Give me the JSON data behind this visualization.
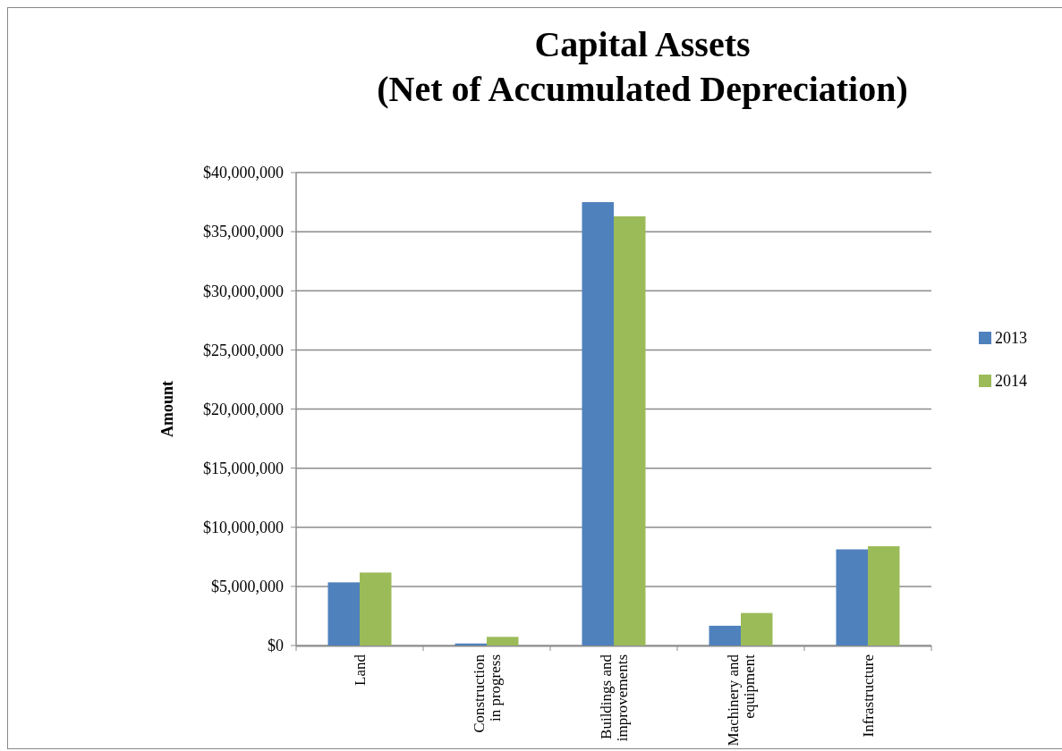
{
  "chart_data": {
    "type": "bar",
    "title": "Capital Assets\n(Net of  Accumulated Depreciation)",
    "ylabel": "Amount",
    "categories": [
      "Land",
      "Construction in progress",
      "Buildings and improvements",
      "Machinery and equipment",
      "Infrastructure"
    ],
    "series": [
      {
        "name": "2013",
        "color": "#4f81bd",
        "values": [
          5340000,
          170000,
          37500000,
          1670000,
          8130000
        ]
      },
      {
        "name": "2014",
        "color": "#9bbb59",
        "values": [
          6170000,
          730000,
          36300000,
          2750000,
          8400000
        ]
      }
    ],
    "ylim": [
      0,
      40000000
    ],
    "yticks": [
      {
        "value": 0,
        "label": "$0"
      },
      {
        "value": 5000000,
        "label": "$5,000,000"
      },
      {
        "value": 10000000,
        "label": "$10,000,000"
      },
      {
        "value": 15000000,
        "label": "$15,000,000"
      },
      {
        "value": 20000000,
        "label": "$20,000,000"
      },
      {
        "value": 25000000,
        "label": "$25,000,000"
      },
      {
        "value": 30000000,
        "label": "$30,000,000"
      },
      {
        "value": 35000000,
        "label": "$35,000,000"
      },
      {
        "value": 40000000,
        "label": "$40,000,000"
      }
    ],
    "grid": "y",
    "legend": "right"
  }
}
